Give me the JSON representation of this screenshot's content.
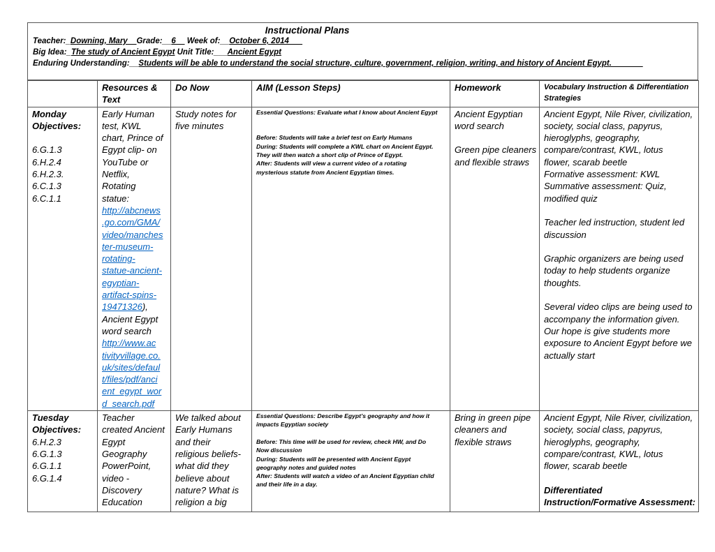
{
  "header": {
    "title": "Instructional Plans",
    "teacher_label": "Teacher:_",
    "teacher": "Downing, Mary__",
    "grade_label": "Grade:__",
    "grade": "6__",
    "week_label": " Week of:__",
    "week": "October 6, 2014___",
    "big_idea_label": "Big Idea:_",
    "big_idea": "The study of Ancient Egypt",
    "unit_label": " Unit Title:___",
    "unit": "Ancient Egypt",
    "eu_label": "Enduring Understanding:__",
    "eu": "Students will be able to understand the social structure, culture, government, religion, writing, and history of Ancient Egypt._______"
  },
  "columns": [
    "",
    "Resources & Text",
    "Do Now",
    "AIM  (Lesson Steps)",
    "Homework",
    "Vocabulary Instruction & Differentiation Strategies"
  ],
  "rows": [
    {
      "day": [
        {
          "t": "Monday",
          "b": 1
        },
        {
          "t": "Objectives:",
          "b": 1
        },
        {
          "t": ""
        },
        {
          "t": "6.G.1.3"
        },
        {
          "t": "6.H.2.4"
        },
        {
          "t": "6.H.2.3."
        },
        {
          "t": "6.C.1.3"
        },
        {
          "t": "6.C.1.1"
        }
      ],
      "resources": [
        {
          "t": "Early Human"
        },
        {
          "t": "test, KWL"
        },
        {
          "t": "chart, Prince of"
        },
        {
          "t": "Egypt clip- on"
        },
        {
          "t": "YouTube or"
        },
        {
          "t": "Netflix,"
        },
        {
          "t": "Rotating"
        },
        {
          "t": "statue:"
        },
        {
          "t": "http://abcnews",
          "l": 1
        },
        {
          "t": ".go.com/GMA/",
          "l": 1
        },
        {
          "t": "video/manches",
          "l": 1
        },
        {
          "t": "ter-museum-",
          "l": 1
        },
        {
          "t": "rotating-",
          "l": 1
        },
        {
          "t": "statue-ancient-",
          "l": 1
        },
        {
          "t": "egyptian-",
          "l": 1
        },
        {
          "t": "artifact-spins-",
          "l": 1
        },
        {
          "t": "19471326",
          "l": 1,
          "s": "),"
        },
        {
          "t": "Ancient Egypt"
        },
        {
          "t": "word search"
        },
        {
          "t": "http://www.ac",
          "l": 1
        },
        {
          "t": "tivityvillage.co.",
          "l": 1
        },
        {
          "t": "uk/sites/defaul",
          "l": 1
        },
        {
          "t": "t/files/pdf/anci",
          "l": 1
        },
        {
          "t": "ent_egypt_wor",
          "l": 1
        },
        {
          "t": "d_search.pdf",
          "l": 1
        }
      ],
      "donow": [
        {
          "t": "Study notes for"
        },
        {
          "t": "five minutes"
        }
      ],
      "aim": [
        {
          "t": "Essential Questions: Evaluate what I know about Ancient Egypt"
        },
        {
          "t": ""
        },
        {
          "t": ""
        },
        {
          "t": "Before: Students will take a brief test on Early Humans"
        },
        {
          "t": "During: Students will complete a KWL chart on Ancient Egypt."
        },
        {
          "t": "They will then watch a short clip of Prince of Egypt."
        },
        {
          "t": "After: Students will view a current video of a rotating"
        },
        {
          "t": "mysterious statute from Ancient Egyptian times."
        }
      ],
      "homework": [
        {
          "t": "Ancient Egyptian"
        },
        {
          "t": "word search"
        },
        {
          "t": ""
        },
        {
          "t": "Green pipe cleaners"
        },
        {
          "t": "and flexible straws"
        }
      ],
      "vocab": [
        {
          "t": "Ancient Egypt, Nile River, civilization,"
        },
        {
          "t": "society, social class, papyrus,"
        },
        {
          "t": "hieroglyphs, geography,"
        },
        {
          "t": "compare/contrast, KWL, lotus"
        },
        {
          "t": "flower, scarab beetle"
        },
        {
          "t": "Formative assessment: KWL"
        },
        {
          "t": "Summative assessment: Quiz,"
        },
        {
          "t": "modified quiz"
        },
        {
          "t": ""
        },
        {
          "t": "Teacher led instruction, student led"
        },
        {
          "t": "discussion"
        },
        {
          "t": ""
        },
        {
          "t": "Graphic organizers are being used"
        },
        {
          "t": "today to help students organize"
        },
        {
          "t": "thoughts."
        },
        {
          "t": ""
        },
        {
          "t": "Several video clips are being used to"
        },
        {
          "t": "accompany the information given."
        },
        {
          "t": "Our hope is give students more"
        },
        {
          "t": "exposure to Ancient Egypt before we"
        },
        {
          "t": "actually start"
        }
      ]
    },
    {
      "day": [
        {
          "t": "Tuesday",
          "b": 1
        },
        {
          "t": "Objectives:",
          "b": 1
        },
        {
          "t": "6.H.2.3"
        },
        {
          "t": "6.G.1.3"
        },
        {
          "t": "6.G.1.1"
        },
        {
          "t": "6.G.1.4"
        }
      ],
      "resources": [
        {
          "t": "Teacher"
        },
        {
          "t": "created Ancient"
        },
        {
          "t": "Egypt"
        },
        {
          "t": "Geography"
        },
        {
          "t": "PowerPoint,"
        },
        {
          "t": "video -"
        },
        {
          "t": "Discovery"
        },
        {
          "t": "Education"
        }
      ],
      "donow": [
        {
          "t": "We talked about"
        },
        {
          "t": "Early Humans"
        },
        {
          "t": "and their"
        },
        {
          "t": "religious beliefs-"
        },
        {
          "t": "what did they"
        },
        {
          "t": "believe about"
        },
        {
          "t": "nature? What is"
        },
        {
          "t": "religion a big"
        }
      ],
      "aim": [
        {
          "t": "Essential Questions:   Describe Egypt’s geography and how it"
        },
        {
          "t": "impacts Egyptian society"
        },
        {
          "t": ""
        },
        {
          "t": "Before: This time will be used for review, check HW, and Do"
        },
        {
          "t": "Now discussion"
        },
        {
          "t": "During:   Students will be presented with Ancient Egypt"
        },
        {
          "t": "geography notes and guided notes"
        },
        {
          "t": "After: Students will watch a video of an Ancient Egyptian child"
        },
        {
          "t": "and their life in a day."
        }
      ],
      "homework": [
        {
          "t": "Bring in green pipe"
        },
        {
          "t": "cleaners and"
        },
        {
          "t": "flexible straws"
        }
      ],
      "vocab": [
        {
          "t": "Ancient Egypt, Nile River, civilization,"
        },
        {
          "t": "society, social class, papyrus,"
        },
        {
          "t": "hieroglyphs, geography,"
        },
        {
          "t": "compare/contrast, KWL, lotus"
        },
        {
          "t": "flower, scarab beetle"
        },
        {
          "t": ""
        },
        {
          "t": "Differentiated",
          "b": 1
        },
        {
          "t": "Instruction/Formative Assessment:",
          "b": 1
        }
      ]
    }
  ],
  "colors": {
    "link": "#0563c1",
    "border": "#555555"
  }
}
